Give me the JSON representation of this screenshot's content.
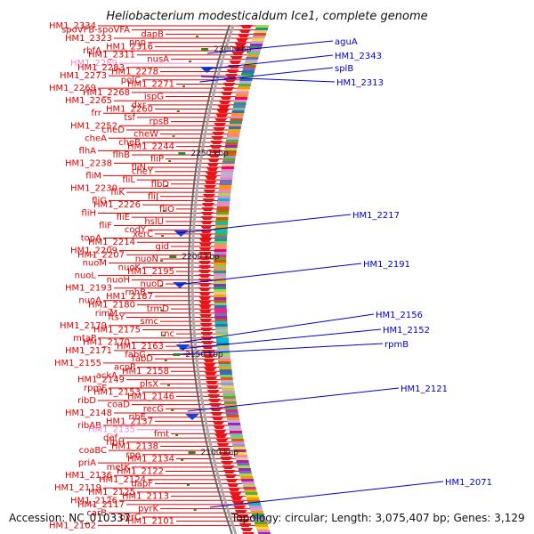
{
  "header": {
    "title": "Heliobacterium modesticaldum Ice1, complete genome"
  },
  "footer": {
    "accession": "Accession: NC_010337",
    "topology": "Topology: circular; Length: 3,075,407 bp; Genes: 3,129"
  },
  "colors": {
    "gene_line": "#e00000",
    "pink_label": "#ee88cc",
    "blue_label": "#0000cc",
    "track_red": "#e8141c",
    "scale_green": "#2a8a2a",
    "ring_gray": "#888888"
  },
  "scale_ticks": [
    "2300 kbp",
    "2250 kbp",
    "2200 kbp",
    "2150 kbp",
    "2100 kbp"
  ],
  "left_labels": [
    {
      "text": "HM1_2334",
      "color": "red"
    },
    {
      "text": "spoVFB-spoVFA",
      "color": "red"
    },
    {
      "text": "dapB",
      "color": "red"
    },
    {
      "text": "HM1_2323",
      "color": "red"
    },
    {
      "text": "pnp",
      "color": "red"
    },
    {
      "text": "HM1_2316",
      "color": "red"
    },
    {
      "text": "rbfA",
      "color": "red"
    },
    {
      "text": "HM1_2311",
      "color": "red"
    },
    {
      "text": "nusA",
      "color": "red"
    },
    {
      "text": "HM1_2289",
      "color": "pink"
    },
    {
      "text": "HM1_2283",
      "color": "red"
    },
    {
      "text": "HM1_2278",
      "color": "red"
    },
    {
      "text": "HM1_2273",
      "color": "red"
    },
    {
      "text": "polC",
      "color": "red"
    },
    {
      "text": "HM1_2271",
      "color": "red"
    },
    {
      "text": "HM1_2269",
      "color": "red"
    },
    {
      "text": "HM1_2268",
      "color": "red"
    },
    {
      "text": "ispG",
      "color": "red"
    },
    {
      "text": "HM1_2265",
      "color": "red"
    },
    {
      "text": "dxr",
      "color": "red"
    },
    {
      "text": "HM1_2260",
      "color": "red"
    },
    {
      "text": "frr",
      "color": "red"
    },
    {
      "text": "tsf",
      "color": "red"
    },
    {
      "text": "rpsB",
      "color": "red"
    },
    {
      "text": "HM1_2252",
      "color": "red"
    },
    {
      "text": "cheD",
      "color": "red"
    },
    {
      "text": "cheW",
      "color": "red"
    },
    {
      "text": "cheA",
      "color": "red"
    },
    {
      "text": "cheB",
      "color": "red"
    },
    {
      "text": "HM1_2244",
      "color": "red"
    },
    {
      "text": "flhA",
      "color": "red"
    },
    {
      "text": "flhB",
      "color": "red"
    },
    {
      "text": "fliP",
      "color": "red"
    },
    {
      "text": "HM1_2238",
      "color": "red"
    },
    {
      "text": "fliN",
      "color": "red"
    },
    {
      "text": "cheY",
      "color": "red"
    },
    {
      "text": "fliM",
      "color": "red"
    },
    {
      "text": "fliL",
      "color": "red"
    },
    {
      "text": "flbD",
      "color": "red"
    },
    {
      "text": "HM1_2230",
      "color": "red"
    },
    {
      "text": "fliK",
      "color": "red"
    },
    {
      "text": "fliJ",
      "color": "red"
    },
    {
      "text": "fliG",
      "color": "red"
    },
    {
      "text": "HM1_2226",
      "color": "red"
    },
    {
      "text": "fliO",
      "color": "red"
    },
    {
      "text": "fliH",
      "color": "red"
    },
    {
      "text": "fliE",
      "color": "red"
    },
    {
      "text": "hslU",
      "color": "red"
    },
    {
      "text": "fliF",
      "color": "red"
    },
    {
      "text": "codY",
      "color": "red"
    },
    {
      "text": "xerC",
      "color": "red"
    },
    {
      "text": "topA",
      "color": "red"
    },
    {
      "text": "HM1_2214",
      "color": "red"
    },
    {
      "text": "gid",
      "color": "red"
    },
    {
      "text": "HM1_2209",
      "color": "red"
    },
    {
      "text": "HM1_2207",
      "color": "red"
    },
    {
      "text": "nuoN",
      "color": "red"
    },
    {
      "text": "nuoM",
      "color": "red"
    },
    {
      "text": "nuoK",
      "color": "red"
    },
    {
      "text": "HM1_2195",
      "color": "red"
    },
    {
      "text": "nuoL",
      "color": "red"
    },
    {
      "text": "nuoH",
      "color": "red"
    },
    {
      "text": "nuoD",
      "color": "red"
    },
    {
      "text": "HM1_2193",
      "color": "red"
    },
    {
      "text": "rnhB",
      "color": "red"
    },
    {
      "text": "HM1_2187",
      "color": "red"
    },
    {
      "text": "nuoA",
      "color": "red"
    },
    {
      "text": "HM1_2180",
      "color": "red"
    },
    {
      "text": "trmD",
      "color": "red"
    },
    {
      "text": "rimM",
      "color": "red"
    },
    {
      "text": "ftsY",
      "color": "red"
    },
    {
      "text": "smc",
      "color": "red"
    },
    {
      "text": "HM1_2179",
      "color": "red"
    },
    {
      "text": "HM1_2175",
      "color": "red"
    },
    {
      "text": "rnc",
      "color": "red"
    },
    {
      "text": "mtaP",
      "color": "red"
    },
    {
      "text": "HM1_2170",
      "color": "red"
    },
    {
      "text": "HM1_2163",
      "color": "red"
    },
    {
      "text": "HM1_2171",
      "color": "red"
    },
    {
      "text": "fabG",
      "color": "red"
    },
    {
      "text": "fabD",
      "color": "red"
    },
    {
      "text": "HM1_2155",
      "color": "red"
    },
    {
      "text": "acpP",
      "color": "red"
    },
    {
      "text": "HM1_2158",
      "color": "red"
    },
    {
      "text": "ackA",
      "color": "red"
    },
    {
      "text": "HM1_2149",
      "color": "red"
    },
    {
      "text": "plsX",
      "color": "red"
    },
    {
      "text": "rpmF",
      "color": "red"
    },
    {
      "text": "HM1_2153",
      "color": "red"
    },
    {
      "text": "HM1_2146",
      "color": "red"
    },
    {
      "text": "ribD",
      "color": "red"
    },
    {
      "text": "coaD",
      "color": "red"
    },
    {
      "text": "recG",
      "color": "red"
    },
    {
      "text": "HM1_2148",
      "color": "red"
    },
    {
      "text": "ribE",
      "color": "red"
    },
    {
      "text": "HM1_2137",
      "color": "red"
    },
    {
      "text": "ribAB",
      "color": "red"
    },
    {
      "text": "HM1_2135",
      "color": "pink"
    },
    {
      "text": "fmt",
      "color": "red"
    },
    {
      "text": "def",
      "color": "red"
    },
    {
      "text": "ribH",
      "color": "red"
    },
    {
      "text": "HM1_2138",
      "color": "red"
    },
    {
      "text": "coaBC",
      "color": "red"
    },
    {
      "text": "rpe",
      "color": "red"
    },
    {
      "text": "HM1_2134",
      "color": "red"
    },
    {
      "text": "priA",
      "color": "red"
    },
    {
      "text": "metK",
      "color": "red"
    },
    {
      "text": "HM1_2122",
      "color": "red"
    },
    {
      "text": "HM1_2136",
      "color": "red"
    },
    {
      "text": "HM1_2124",
      "color": "red"
    },
    {
      "text": "dapF",
      "color": "red"
    },
    {
      "text": "HM1_2119",
      "color": "red"
    },
    {
      "text": "HM1_2125",
      "color": "red"
    },
    {
      "text": "HM1_2113",
      "color": "red"
    },
    {
      "text": "HM1_2126",
      "color": "red"
    },
    {
      "text": "HM1_2117",
      "color": "red"
    },
    {
      "text": "pyrK",
      "color": "red"
    },
    {
      "text": "carB",
      "color": "red"
    },
    {
      "text": "pyrC",
      "color": "red"
    },
    {
      "text": "HM1_2101",
      "color": "red"
    },
    {
      "text": "HM1_2102",
      "color": "red"
    }
  ],
  "right_labels": [
    {
      "text": "aguA"
    },
    {
      "text": "HM1_2343"
    },
    {
      "text": "splB"
    },
    {
      "text": "HM1_2313"
    },
    {
      "text": "HM1_2217"
    },
    {
      "text": "HM1_2191"
    },
    {
      "text": "HM1_2156"
    },
    {
      "text": "HM1_2152"
    },
    {
      "text": "rpmB"
    },
    {
      "text": "HM1_2121"
    },
    {
      "text": "HM1_2071"
    }
  ]
}
